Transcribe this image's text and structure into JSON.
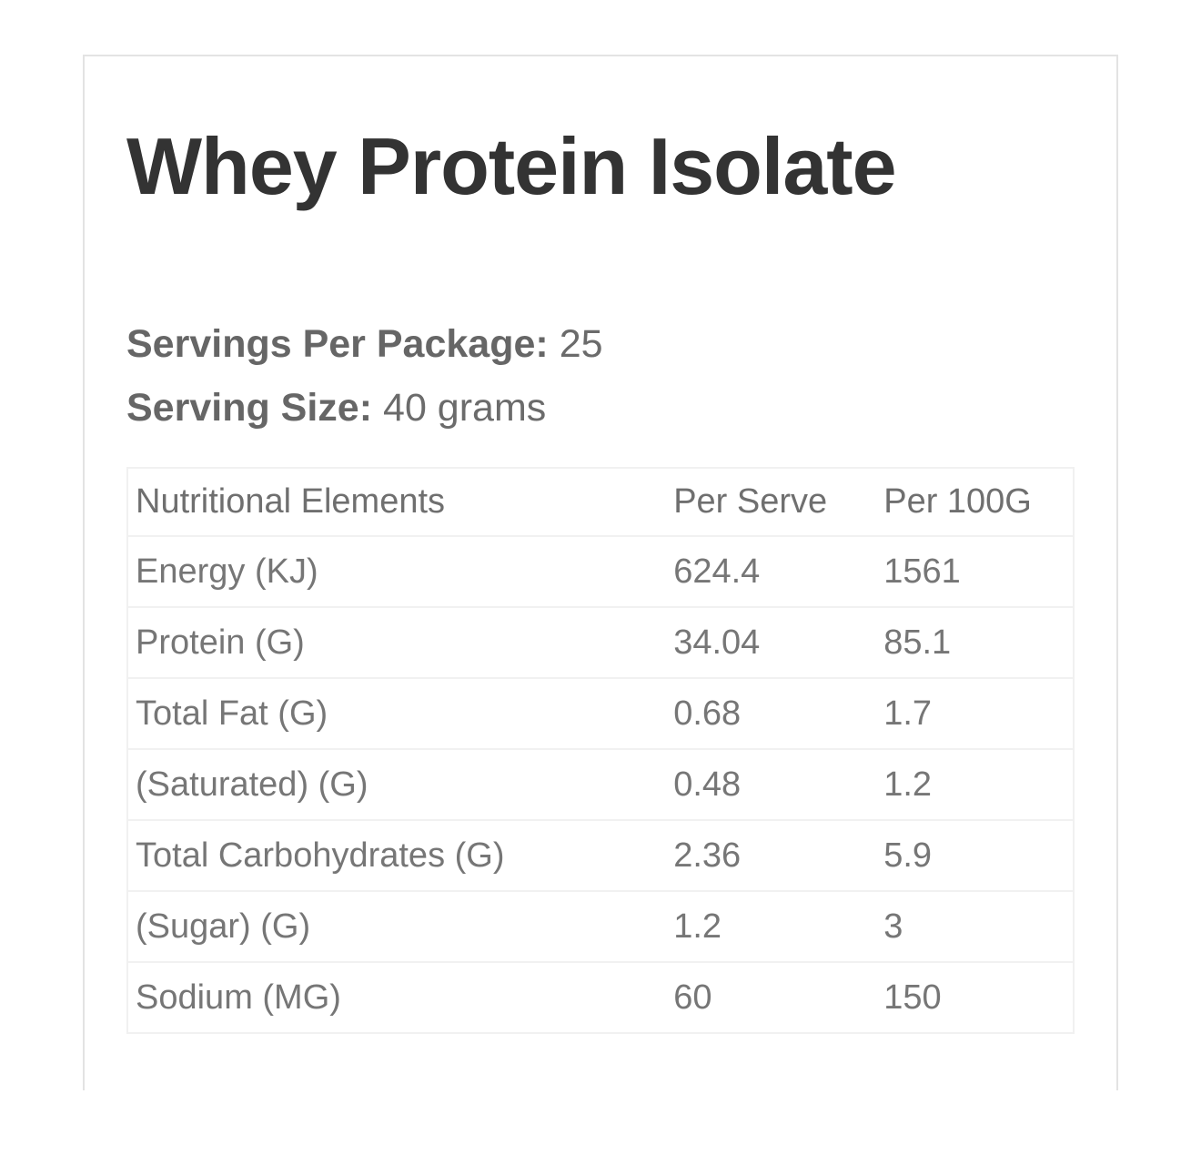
{
  "card": {
    "title": "Whey Protein Isolate",
    "servings_per_package": {
      "label": "Servings Per Package:",
      "value": "25"
    },
    "serving_size": {
      "label": "Serving Size:",
      "value": "40 grams"
    }
  },
  "table": {
    "headers": [
      "Nutritional Elements",
      "Per Serve",
      "Per 100G"
    ],
    "rows": [
      {
        "element": "Energy (KJ)",
        "per_serve": "624.4",
        "per_100g": "1561"
      },
      {
        "element": "Protein (G)",
        "per_serve": "34.04",
        "per_100g": "85.1"
      },
      {
        "element": "Total Fat (G)",
        "per_serve": "0.68",
        "per_100g": "1.7"
      },
      {
        "element": "(Saturated) (G)",
        "per_serve": "0.48",
        "per_100g": "1.2"
      },
      {
        "element": "Total Carbohydrates (G)",
        "per_serve": "2.36",
        "per_100g": "5.9"
      },
      {
        "element": "(Sugar) (G)",
        "per_serve": "1.2",
        "per_100g": "3"
      },
      {
        "element": "Sodium (MG)",
        "per_serve": "60",
        "per_100g": "150"
      }
    ]
  },
  "colors": {
    "title_text": "#333333",
    "body_text": "#6b6b6b",
    "table_text": "#767676",
    "card_border": "#e3e3e3",
    "table_border": "#f1f1f1"
  }
}
